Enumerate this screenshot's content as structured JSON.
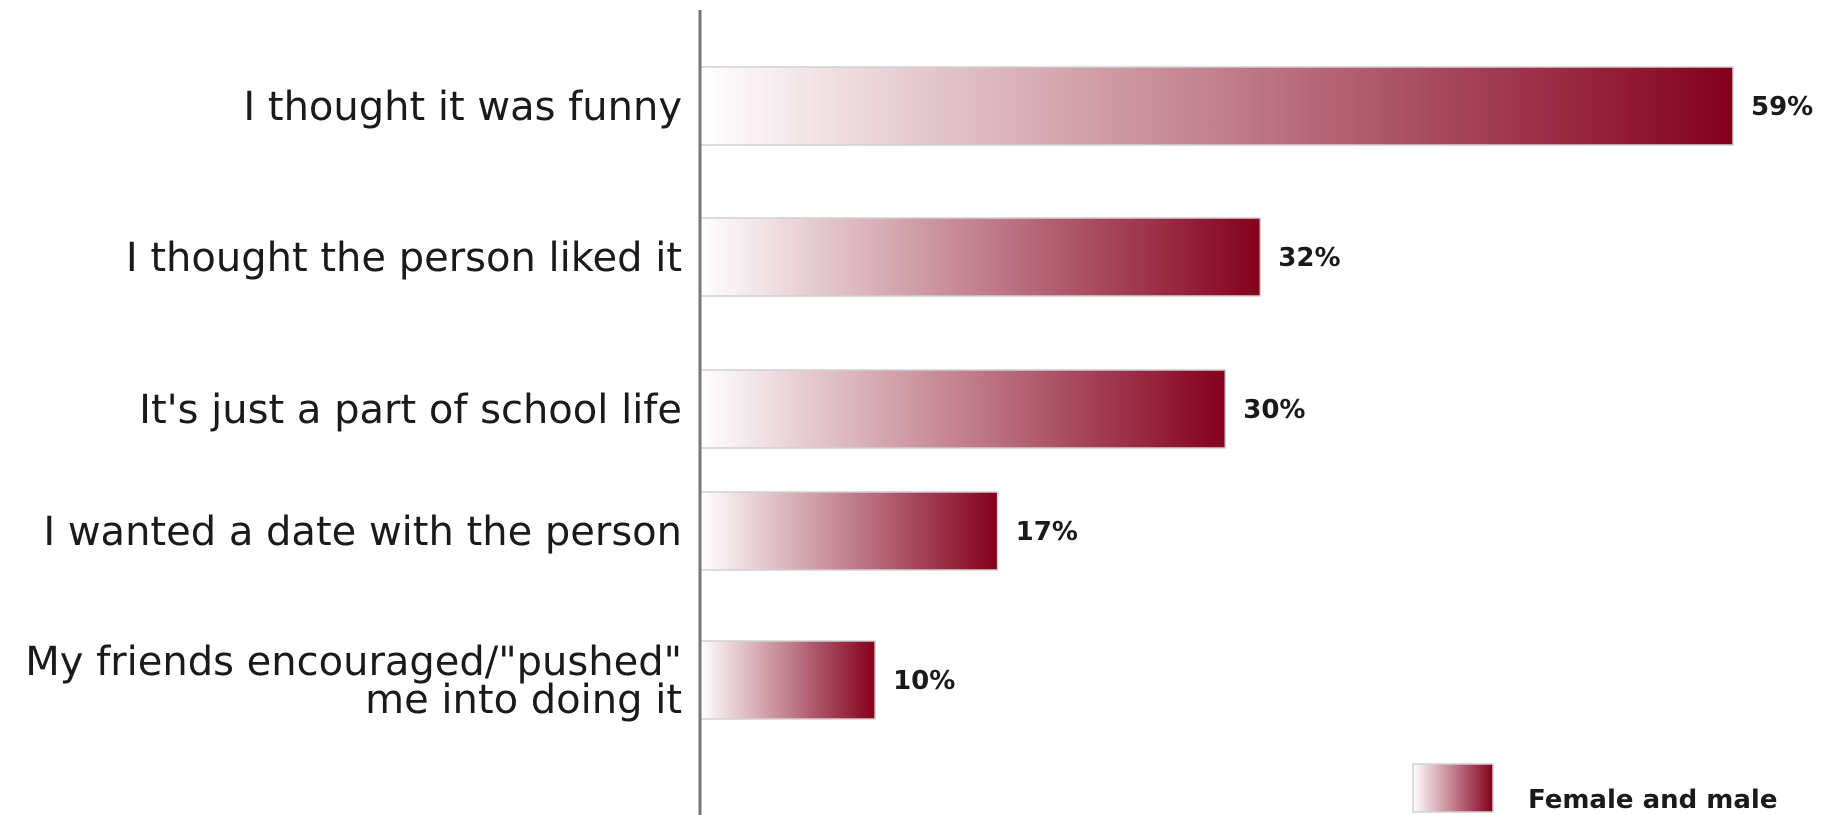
{
  "chart_data": {
    "type": "bar",
    "orientation": "horizontal",
    "categories": [
      [
        "I thought it was funny"
      ],
      [
        "I thought the person liked it"
      ],
      [
        "It's just a part of school life"
      ],
      [
        "I wanted a date with the person"
      ],
      [
        "My friends encouraged/\"pushed\"",
        "me into doing it"
      ]
    ],
    "series": [
      {
        "name": "Female and male",
        "values": [
          59,
          32,
          30,
          17,
          10
        ],
        "value_labels": [
          "59%",
          "32%",
          "30%",
          "17%",
          "10%"
        ]
      }
    ],
    "xlim": [
      0,
      59
    ],
    "grid": false,
    "legend_position": "bottom-right",
    "colors": {
      "bar_start": "#ffffff",
      "bar_end": "#84001c",
      "axis": "#777777"
    }
  }
}
